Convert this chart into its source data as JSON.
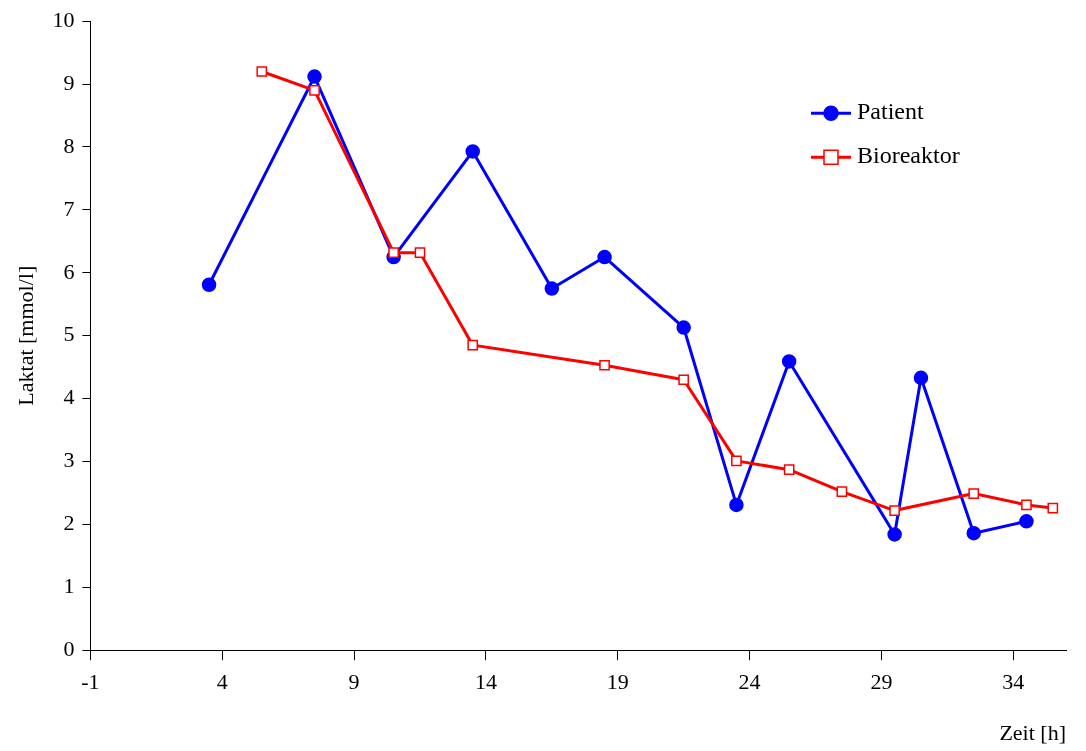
{
  "chart_data": {
    "type": "line",
    "xlabel": "Zeit [h]",
    "ylabel": "Laktat [mmol/l]",
    "xlim": [
      -1,
      36
    ],
    "xticks": [
      -1,
      4,
      9,
      14,
      19,
      24,
      29,
      34
    ],
    "ylim": [
      0,
      10
    ],
    "yticks": [
      0,
      1,
      2,
      3,
      4,
      5,
      6,
      7,
      8,
      9,
      10
    ],
    "grid": false,
    "legend": "top right",
    "line_style": "solid",
    "series": [
      {
        "name": "Patient",
        "color": "#0000ff",
        "marker": "circle",
        "x": [
          3.5,
          7.5,
          10.5,
          13.5,
          16.5,
          18.5,
          21.5,
          23.5,
          25.5,
          29.5,
          30.5,
          32.5,
          34.5
        ],
        "values": [
          5.81,
          9.12,
          6.25,
          7.93,
          5.75,
          6.25,
          5.13,
          2.31,
          4.59,
          1.84,
          4.33,
          1.86,
          2.05
        ]
      },
      {
        "name": "Bioreaktor",
        "color": "#ff0000",
        "marker": "square",
        "x": [
          5.5,
          7.5,
          10.5,
          11.5,
          13.5,
          18.5,
          21.5,
          23.5,
          25.5,
          27.5,
          29.5,
          32.5,
          34.5,
          35.5
        ],
        "values": [
          9.2,
          8.9,
          6.32,
          6.32,
          4.85,
          4.53,
          4.3,
          3.01,
          2.87,
          2.52,
          2.22,
          2.49,
          2.31,
          2.26
        ]
      }
    ]
  }
}
